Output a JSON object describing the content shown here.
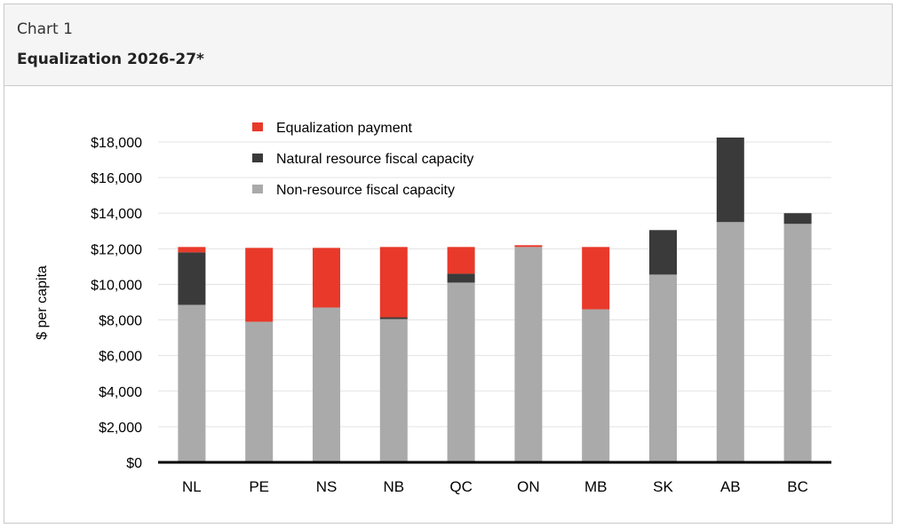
{
  "header": {
    "label": "Chart 1",
    "title": "Equalization 2026-27*"
  },
  "chart_data": {
    "type": "bar",
    "stacked": true,
    "categories": [
      "NL",
      "PE",
      "NS",
      "NB",
      "QC",
      "ON",
      "MB",
      "SK",
      "AB",
      "BC"
    ],
    "series": [
      {
        "name": "Non-resource fiscal capacity",
        "color": "#aaaaaa",
        "values": [
          8850,
          7900,
          8700,
          8050,
          10100,
          12100,
          8600,
          10550,
          13500,
          13400
        ]
      },
      {
        "name": "Natural resource fiscal capacity",
        "color": "#3a3a3a",
        "values": [
          2950,
          0,
          0,
          100,
          500,
          0,
          0,
          2500,
          4750,
          600
        ]
      },
      {
        "name": "Equalization payment",
        "color": "#e8392a",
        "values": [
          300,
          4150,
          3350,
          3950,
          1500,
          100,
          3500,
          0,
          0,
          0
        ]
      }
    ],
    "legend_order": [
      "Equalization payment",
      "Natural resource fiscal capacity",
      "Non-resource fiscal capacity"
    ],
    "ylabel": "$ per capita",
    "xlabel": "",
    "ylim": [
      0,
      18000
    ],
    "yticks": [
      0,
      2000,
      4000,
      6000,
      8000,
      10000,
      12000,
      14000,
      16000,
      18000
    ],
    "ytick_labels": [
      "$0",
      "$2,000",
      "$4,000",
      "$6,000",
      "$8,000",
      "$10,000",
      "$12,000",
      "$14,000",
      "$16,000",
      "$18,000"
    ],
    "grid": true,
    "legend_position": "top-left"
  }
}
